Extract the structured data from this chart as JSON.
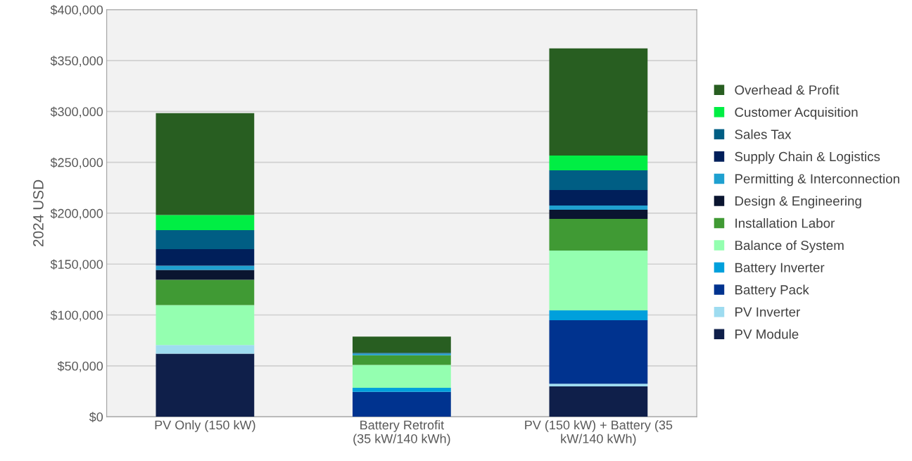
{
  "chart_data": {
    "type": "bar",
    "stacked": true,
    "ylabel": "2024 USD",
    "categories": [
      "PV Only (150 kW)",
      "Battery Retrofit\n(35 kW/140 kWh)",
      "PV (150 kW) + Battery (35\nkW/140 kWh)"
    ],
    "series": [
      {
        "name": "PV Module",
        "color": "#0f1f4a",
        "values": [
          62000,
          0,
          29800
        ]
      },
      {
        "name": "PV Inverter",
        "color": "#9edcf0",
        "values": [
          8500,
          0,
          2700
        ]
      },
      {
        "name": "Battery Pack",
        "color": "#00338f",
        "values": [
          0,
          24400,
          62300
        ]
      },
      {
        "name": "Battery Inverter",
        "color": "#00a0dc",
        "values": [
          0,
          4000,
          9700
        ]
      },
      {
        "name": "Balance of System",
        "color": "#94ffb0",
        "values": [
          39200,
          22600,
          58800
        ]
      },
      {
        "name": "Installation Labor",
        "color": "#409a34",
        "values": [
          24900,
          9400,
          31200
        ]
      },
      {
        "name": "Design & Engineering",
        "color": "#0a1530",
        "values": [
          9700,
          0,
          9000
        ]
      },
      {
        "name": "Permitting & Interconnection",
        "color": "#1fa0d0",
        "values": [
          4200,
          1500,
          4100
        ]
      },
      {
        "name": "Supply Chain & Logistics",
        "color": "#001f5a",
        "values": [
          16100,
          0,
          15200
        ]
      },
      {
        "name": "Sales Tax",
        "color": "#005e84",
        "values": [
          18700,
          1000,
          19400
        ]
      },
      {
        "name": "Customer Acquisition",
        "color": "#00ee44",
        "values": [
          15000,
          0,
          14500
        ]
      },
      {
        "name": "Overhead & Profit",
        "color": "#285e21",
        "values": [
          100100,
          15800,
          105300
        ]
      }
    ],
    "ylim": [
      0,
      400000
    ],
    "yticks": [
      {
        "value": 0,
        "label": "$0"
      },
      {
        "value": 50000,
        "label": "$50,000"
      },
      {
        "value": 100000,
        "label": "$100,000"
      },
      {
        "value": 150000,
        "label": "$150,000"
      },
      {
        "value": 200000,
        "label": "$200,000"
      },
      {
        "value": 250000,
        "label": "$250,000"
      },
      {
        "value": 300000,
        "label": "$300,000"
      },
      {
        "value": 350000,
        "label": "$350,000"
      },
      {
        "value": 400000,
        "label": "$400,000"
      }
    ],
    "grid": "y",
    "legend": "right"
  }
}
